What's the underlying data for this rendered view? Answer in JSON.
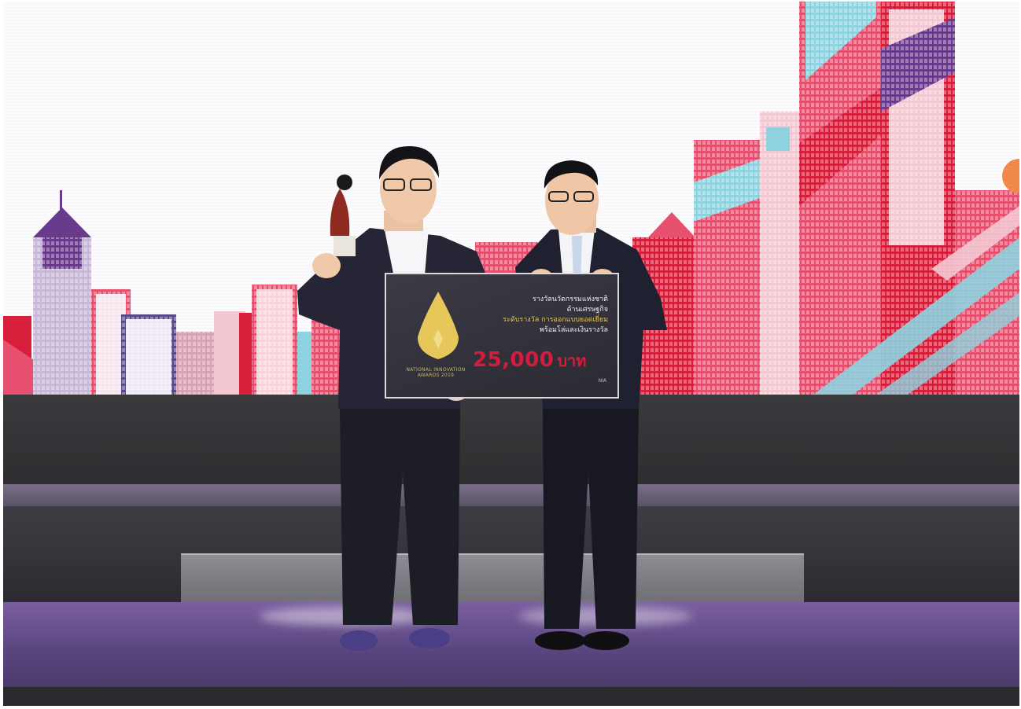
{
  "scene": {
    "palette": {
      "screen_bg": "#fbfbfd",
      "building_pink": "#e8506f",
      "building_red": "#d81f3c",
      "building_purple": "#6a3a8c",
      "building_light": "#f4c9d3",
      "building_teal": "#8fd3e0",
      "stage_dark": "#2e2e31",
      "floor_purple": "#5b4780",
      "suit_dark": "#1f2030",
      "check_bg": "#2f2e37",
      "check_amount_red": "#d61b3c",
      "check_gold": "#e7c75a"
    },
    "check": {
      "line1": "รางวัลนวัตกรรมแห่งชาติ",
      "line2": "ด้านเศรษฐกิจ",
      "line3": "ระดับรางวัล การออกแบบยอดเยี่ยม",
      "line4": "พร้อมโล่และเงินรางวัล",
      "amount_number": "25,000",
      "amount_unit": "บาท",
      "logo_caption": "NATIONAL INNOVATION AWARDS 2019",
      "sponsors": "NIA"
    },
    "icons": [
      "award-flame-logo-icon",
      "trophy-icon"
    ]
  }
}
